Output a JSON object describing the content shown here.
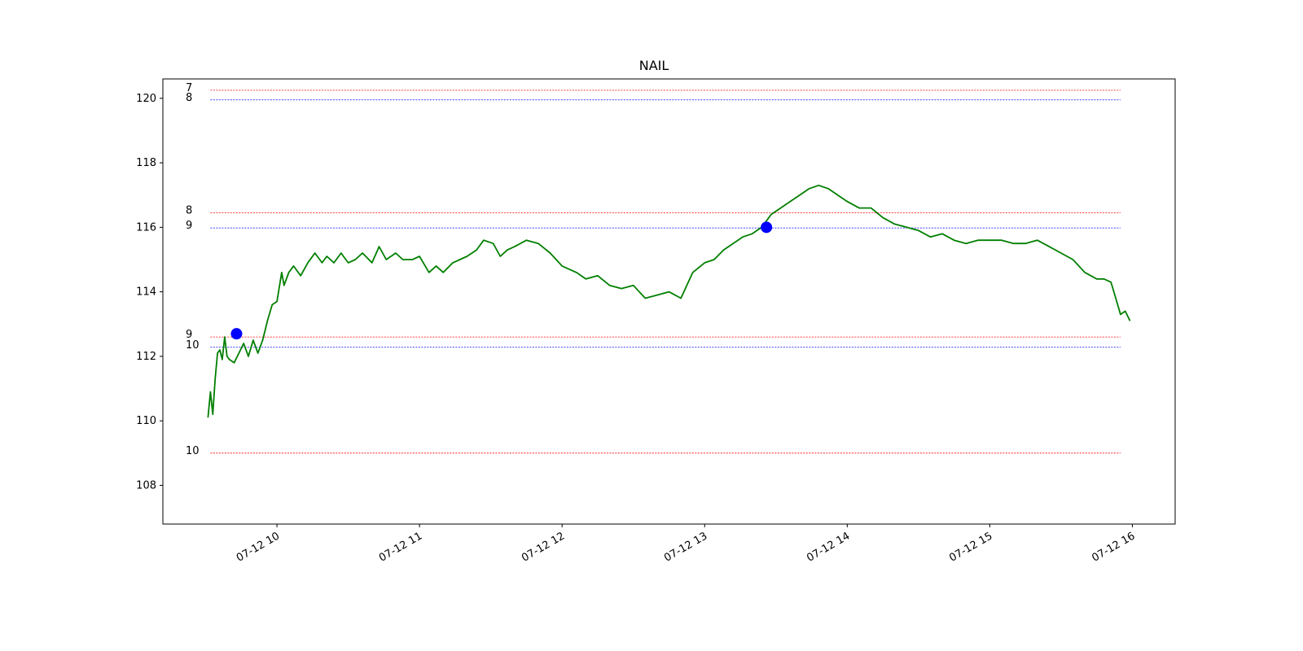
{
  "chart_data": {
    "type": "line",
    "title": "NAIL",
    "xlabel": "",
    "ylabel": "",
    "grid": false,
    "ylim": [
      106.8,
      120.6
    ],
    "xlim": [
      "2022-07-12 09:12",
      "2022-07-12 16:18"
    ],
    "x_ticks": [
      {
        "time": "2022-07-12 10:00",
        "label": "07-12 10"
      },
      {
        "time": "2022-07-12 11:00",
        "label": "07-12 11"
      },
      {
        "time": "2022-07-12 12:00",
        "label": "07-12 12"
      },
      {
        "time": "2022-07-12 13:00",
        "label": "07-12 13"
      },
      {
        "time": "2022-07-12 14:00",
        "label": "07-12 14"
      },
      {
        "time": "2022-07-12 15:00",
        "label": "07-12 15"
      },
      {
        "time": "2022-07-12 16:00",
        "label": "07-12 16"
      }
    ],
    "y_ticks": [
      108,
      110,
      112,
      114,
      116,
      118,
      120
    ],
    "series": [
      {
        "color": "#007f00",
        "x": [
          "2022-07-12 09:31",
          "2022-07-12 09:32",
          "2022-07-12 09:33",
          "2022-07-12 09:34",
          "2022-07-12 09:35",
          "2022-07-12 09:36",
          "2022-07-12 09:37",
          "2022-07-12 09:38",
          "2022-07-12 09:39",
          "2022-07-12 09:40",
          "2022-07-12 09:42",
          "2022-07-12 09:44",
          "2022-07-12 09:46",
          "2022-07-12 09:48",
          "2022-07-12 09:50",
          "2022-07-12 09:52",
          "2022-07-12 09:54",
          "2022-07-12 09:56",
          "2022-07-12 09:58",
          "2022-07-12 10:00",
          "2022-07-12 10:02",
          "2022-07-12 10:03",
          "2022-07-12 10:05",
          "2022-07-12 10:07",
          "2022-07-12 10:10",
          "2022-07-12 10:13",
          "2022-07-12 10:16",
          "2022-07-12 10:19",
          "2022-07-12 10:21",
          "2022-07-12 10:24",
          "2022-07-12 10:27",
          "2022-07-12 10:30",
          "2022-07-12 10:33",
          "2022-07-12 10:36",
          "2022-07-12 10:40",
          "2022-07-12 10:43",
          "2022-07-12 10:46",
          "2022-07-12 10:50",
          "2022-07-12 10:53",
          "2022-07-12 10:57",
          "2022-07-12 11:00",
          "2022-07-12 11:04",
          "2022-07-12 11:07",
          "2022-07-12 11:10",
          "2022-07-12 11:14",
          "2022-07-12 11:17",
          "2022-07-12 11:20",
          "2022-07-12 11:24",
          "2022-07-12 11:27",
          "2022-07-12 11:31",
          "2022-07-12 11:34",
          "2022-07-12 11:37",
          "2022-07-12 11:40",
          "2022-07-12 11:45",
          "2022-07-12 11:50",
          "2022-07-12 11:55",
          "2022-07-12 12:00",
          "2022-07-12 12:06",
          "2022-07-12 12:10",
          "2022-07-12 12:15",
          "2022-07-12 12:20",
          "2022-07-12 12:25",
          "2022-07-12 12:30",
          "2022-07-12 12:35",
          "2022-07-12 12:40",
          "2022-07-12 12:45",
          "2022-07-12 12:50",
          "2022-07-12 12:55",
          "2022-07-12 13:00",
          "2022-07-12 13:04",
          "2022-07-12 13:08",
          "2022-07-12 13:12",
          "2022-07-12 13:16",
          "2022-07-12 13:20",
          "2022-07-12 13:24",
          "2022-07-12 13:28",
          "2022-07-12 13:32",
          "2022-07-12 13:36",
          "2022-07-12 13:40",
          "2022-07-12 13:44",
          "2022-07-12 13:48",
          "2022-07-12 13:52",
          "2022-07-12 13:56",
          "2022-07-12 14:00",
          "2022-07-12 14:05",
          "2022-07-12 14:10",
          "2022-07-12 14:15",
          "2022-07-12 14:20",
          "2022-07-12 14:25",
          "2022-07-12 14:30",
          "2022-07-12 14:35",
          "2022-07-12 14:40",
          "2022-07-12 14:45",
          "2022-07-12 14:50",
          "2022-07-12 14:55",
          "2022-07-12 15:00",
          "2022-07-12 15:05",
          "2022-07-12 15:10",
          "2022-07-12 15:15",
          "2022-07-12 15:20",
          "2022-07-12 15:25",
          "2022-07-12 15:30",
          "2022-07-12 15:35",
          "2022-07-12 15:40",
          "2022-07-12 15:45",
          "2022-07-12 15:48",
          "2022-07-12 15:51",
          "2022-07-12 15:53",
          "2022-07-12 15:55",
          "2022-07-12 15:57",
          "2022-07-12 15:59"
        ],
        "y": [
          110.1,
          110.9,
          110.2,
          111.3,
          112.1,
          112.2,
          111.9,
          112.6,
          112.0,
          111.9,
          111.8,
          112.1,
          112.4,
          112.0,
          112.5,
          112.1,
          112.5,
          113.1,
          113.6,
          113.7,
          114.6,
          114.2,
          114.6,
          114.8,
          114.5,
          114.9,
          115.2,
          114.9,
          115.1,
          114.9,
          115.2,
          114.9,
          115.0,
          115.2,
          114.9,
          115.4,
          115.0,
          115.2,
          115.0,
          115.0,
          115.1,
          114.6,
          114.8,
          114.6,
          114.9,
          115.0,
          115.1,
          115.3,
          115.6,
          115.5,
          115.1,
          115.3,
          115.4,
          115.6,
          115.5,
          115.2,
          114.8,
          114.6,
          114.4,
          114.5,
          114.2,
          114.1,
          114.2,
          113.8,
          113.9,
          114.0,
          113.8,
          114.6,
          114.9,
          115.0,
          115.3,
          115.5,
          115.7,
          115.8,
          116.0,
          116.4,
          116.6,
          116.8,
          117.0,
          117.2,
          117.3,
          117.2,
          117.0,
          116.8,
          116.6,
          116.6,
          116.3,
          116.1,
          116.0,
          115.9,
          115.7,
          115.8,
          115.6,
          115.5,
          115.6,
          115.6,
          115.6,
          115.5,
          115.5,
          115.6,
          115.4,
          115.2,
          115.0,
          114.6,
          114.4,
          114.4,
          114.3,
          113.8,
          113.3,
          113.4,
          113.1
        ]
      }
    ],
    "markers": [
      {
        "x": "2022-07-12 09:43",
        "y": 112.7,
        "color": "#0000ff"
      },
      {
        "x": "2022-07-12 13:26",
        "y": 116.0,
        "color": "#0000ff"
      }
    ],
    "levels": [
      {
        "label": "7",
        "y": 120.25,
        "color": "#ff0000"
      },
      {
        "label": "8",
        "y": 119.95,
        "color": "#0000ff"
      },
      {
        "label": "8",
        "y": 116.45,
        "color": "#ff0000"
      },
      {
        "label": "9",
        "y": 115.98,
        "color": "#0000ff"
      },
      {
        "label": "9",
        "y": 112.6,
        "color": "#ff0000"
      },
      {
        "label": "10",
        "y": 112.28,
        "color": "#0000ff"
      },
      {
        "label": "10",
        "y": 109.0,
        "color": "#ff0000"
      }
    ],
    "levels_x_range": [
      "2022-07-12 09:32",
      "2022-07-12 15:55"
    ]
  }
}
